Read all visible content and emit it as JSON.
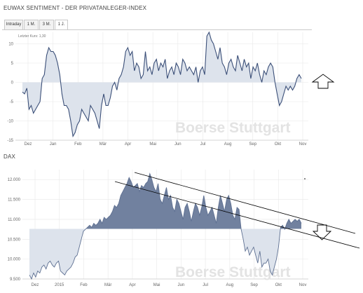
{
  "colors": {
    "sentiment_line": "#3b4f78",
    "sentiment_fill": "#dde3ec",
    "dax_line": "#5e7092",
    "dax_fill_above": "#71819f",
    "dax_fill_below": "#dde3ec",
    "grid": "#e8e8e8",
    "watermark": "#e3e3e3"
  },
  "watermark": {
    "text": "Boerse Stuttgart"
  },
  "chart_data": [
    {
      "type": "area",
      "title": "EUWAX SENTIMENT - DER PRIVATANLEGER-INDEX",
      "tabs": [
        "Intraday",
        "1 M.",
        "3 M.",
        "1 J."
      ],
      "active_tab": "1 J.",
      "note": "Letzter Kurs: 1,30",
      "xlabels": [
        "Dez",
        "Jan",
        "Feb",
        "Mär",
        "Apr",
        "Mai",
        "Jun",
        "Jul",
        "Aug",
        "Sep",
        "Okt",
        "Nov"
      ],
      "ylim": [
        -15,
        13
      ],
      "yticks": [
        10,
        5,
        0,
        -5,
        -10,
        -15
      ],
      "ytick_labels": [
        "10",
        "5",
        "0",
        "-5",
        "-10",
        "-15"
      ],
      "baseline": 0,
      "grid": true,
      "series": [
        {
          "values": [
            -2.5,
            -3,
            -1.5,
            -7,
            -6,
            -8,
            -7,
            -6,
            -5,
            1,
            2,
            7,
            9,
            8,
            8,
            7,
            5,
            2,
            -3,
            -6,
            -6,
            -7,
            -10,
            -14,
            -13,
            -11,
            -10,
            -7,
            -8,
            -9,
            -10,
            -6,
            -7,
            -8,
            -10,
            -12,
            -6,
            -3,
            -6,
            -6,
            -4,
            -1,
            0,
            -2,
            1,
            2,
            4,
            8,
            9,
            7,
            8,
            3,
            5,
            4,
            1,
            2,
            8,
            3,
            4,
            2,
            5,
            6,
            3,
            5,
            4,
            6,
            1,
            3,
            4,
            2,
            5,
            4,
            2,
            6,
            5,
            3,
            4,
            3,
            2,
            4,
            0,
            3,
            4,
            2,
            12,
            13,
            11,
            10,
            8,
            6,
            9,
            5,
            4,
            2,
            5,
            6,
            4,
            3,
            7,
            5,
            3,
            6,
            4,
            5,
            1,
            4,
            3,
            5,
            2,
            0,
            3,
            2,
            4,
            5,
            4,
            0,
            -3,
            -6,
            -5,
            -3,
            -1,
            -2,
            -1,
            -2,
            -1,
            1,
            2,
            1
          ]
        }
      ],
      "annotation": "up-arrow"
    },
    {
      "type": "area",
      "title": "DAX",
      "xlabels": [
        "Dez",
        "2015",
        "Feb",
        "Mär",
        "Apr",
        "Mai",
        "Jun",
        "Jul",
        "Aug",
        "Sep",
        "Okt",
        "Nov"
      ],
      "ylim": [
        9500,
        12250
      ],
      "yticks": [
        12000,
        11500,
        11000,
        10500,
        10000,
        9500
      ],
      "ytick_labels": [
        "12.000",
        "11.500",
        "11.000",
        "10.500",
        "10.000",
        "9.500"
      ],
      "baseline": 10760,
      "grid": true,
      "series": [
        {
          "values": [
            9600,
            9500,
            9650,
            9550,
            9700,
            9650,
            9800,
            9850,
            9750,
            9900,
            9950,
            9850,
            9800,
            9900,
            9950,
            9700,
            9650,
            9600,
            9700,
            9750,
            9800,
            9900,
            10050,
            10100,
            10300,
            10500,
            10700,
            10750,
            10800,
            10850,
            10800,
            10900,
            10850,
            10900,
            11000,
            10900,
            11050,
            11000,
            11050,
            11100,
            11200,
            11350,
            11300,
            11400,
            11600,
            11700,
            11800,
            11900,
            12050,
            11950,
            11800,
            11850,
            11900,
            11700,
            11850,
            11800,
            11900,
            11950,
            12150,
            12000,
            11800,
            11700,
            11900,
            11500,
            11400,
            11600,
            11800,
            11500,
            11600,
            11300,
            11200,
            11500,
            11400,
            11200,
            11000,
            11300,
            11400,
            11200,
            10950,
            11200,
            11400,
            11300,
            11100,
            11300,
            11600,
            11300,
            11100,
            11200,
            11300,
            11100,
            10900,
            11300,
            11600,
            11400,
            11200,
            11500,
            11600,
            11400,
            11100,
            11000,
            11300,
            11250,
            10750,
            10500,
            10200,
            10300,
            10100,
            10200,
            10300,
            10100,
            9900,
            10200,
            9800,
            9900,
            9900,
            10000,
            9700,
            9600,
            9800,
            10000,
            10300,
            10800,
            10850,
            10750,
            10900,
            11000,
            10900,
            10950,
            11000,
            10950,
            11000,
            10900
          ]
        }
      ],
      "annotation": "down-arrow"
    }
  ]
}
